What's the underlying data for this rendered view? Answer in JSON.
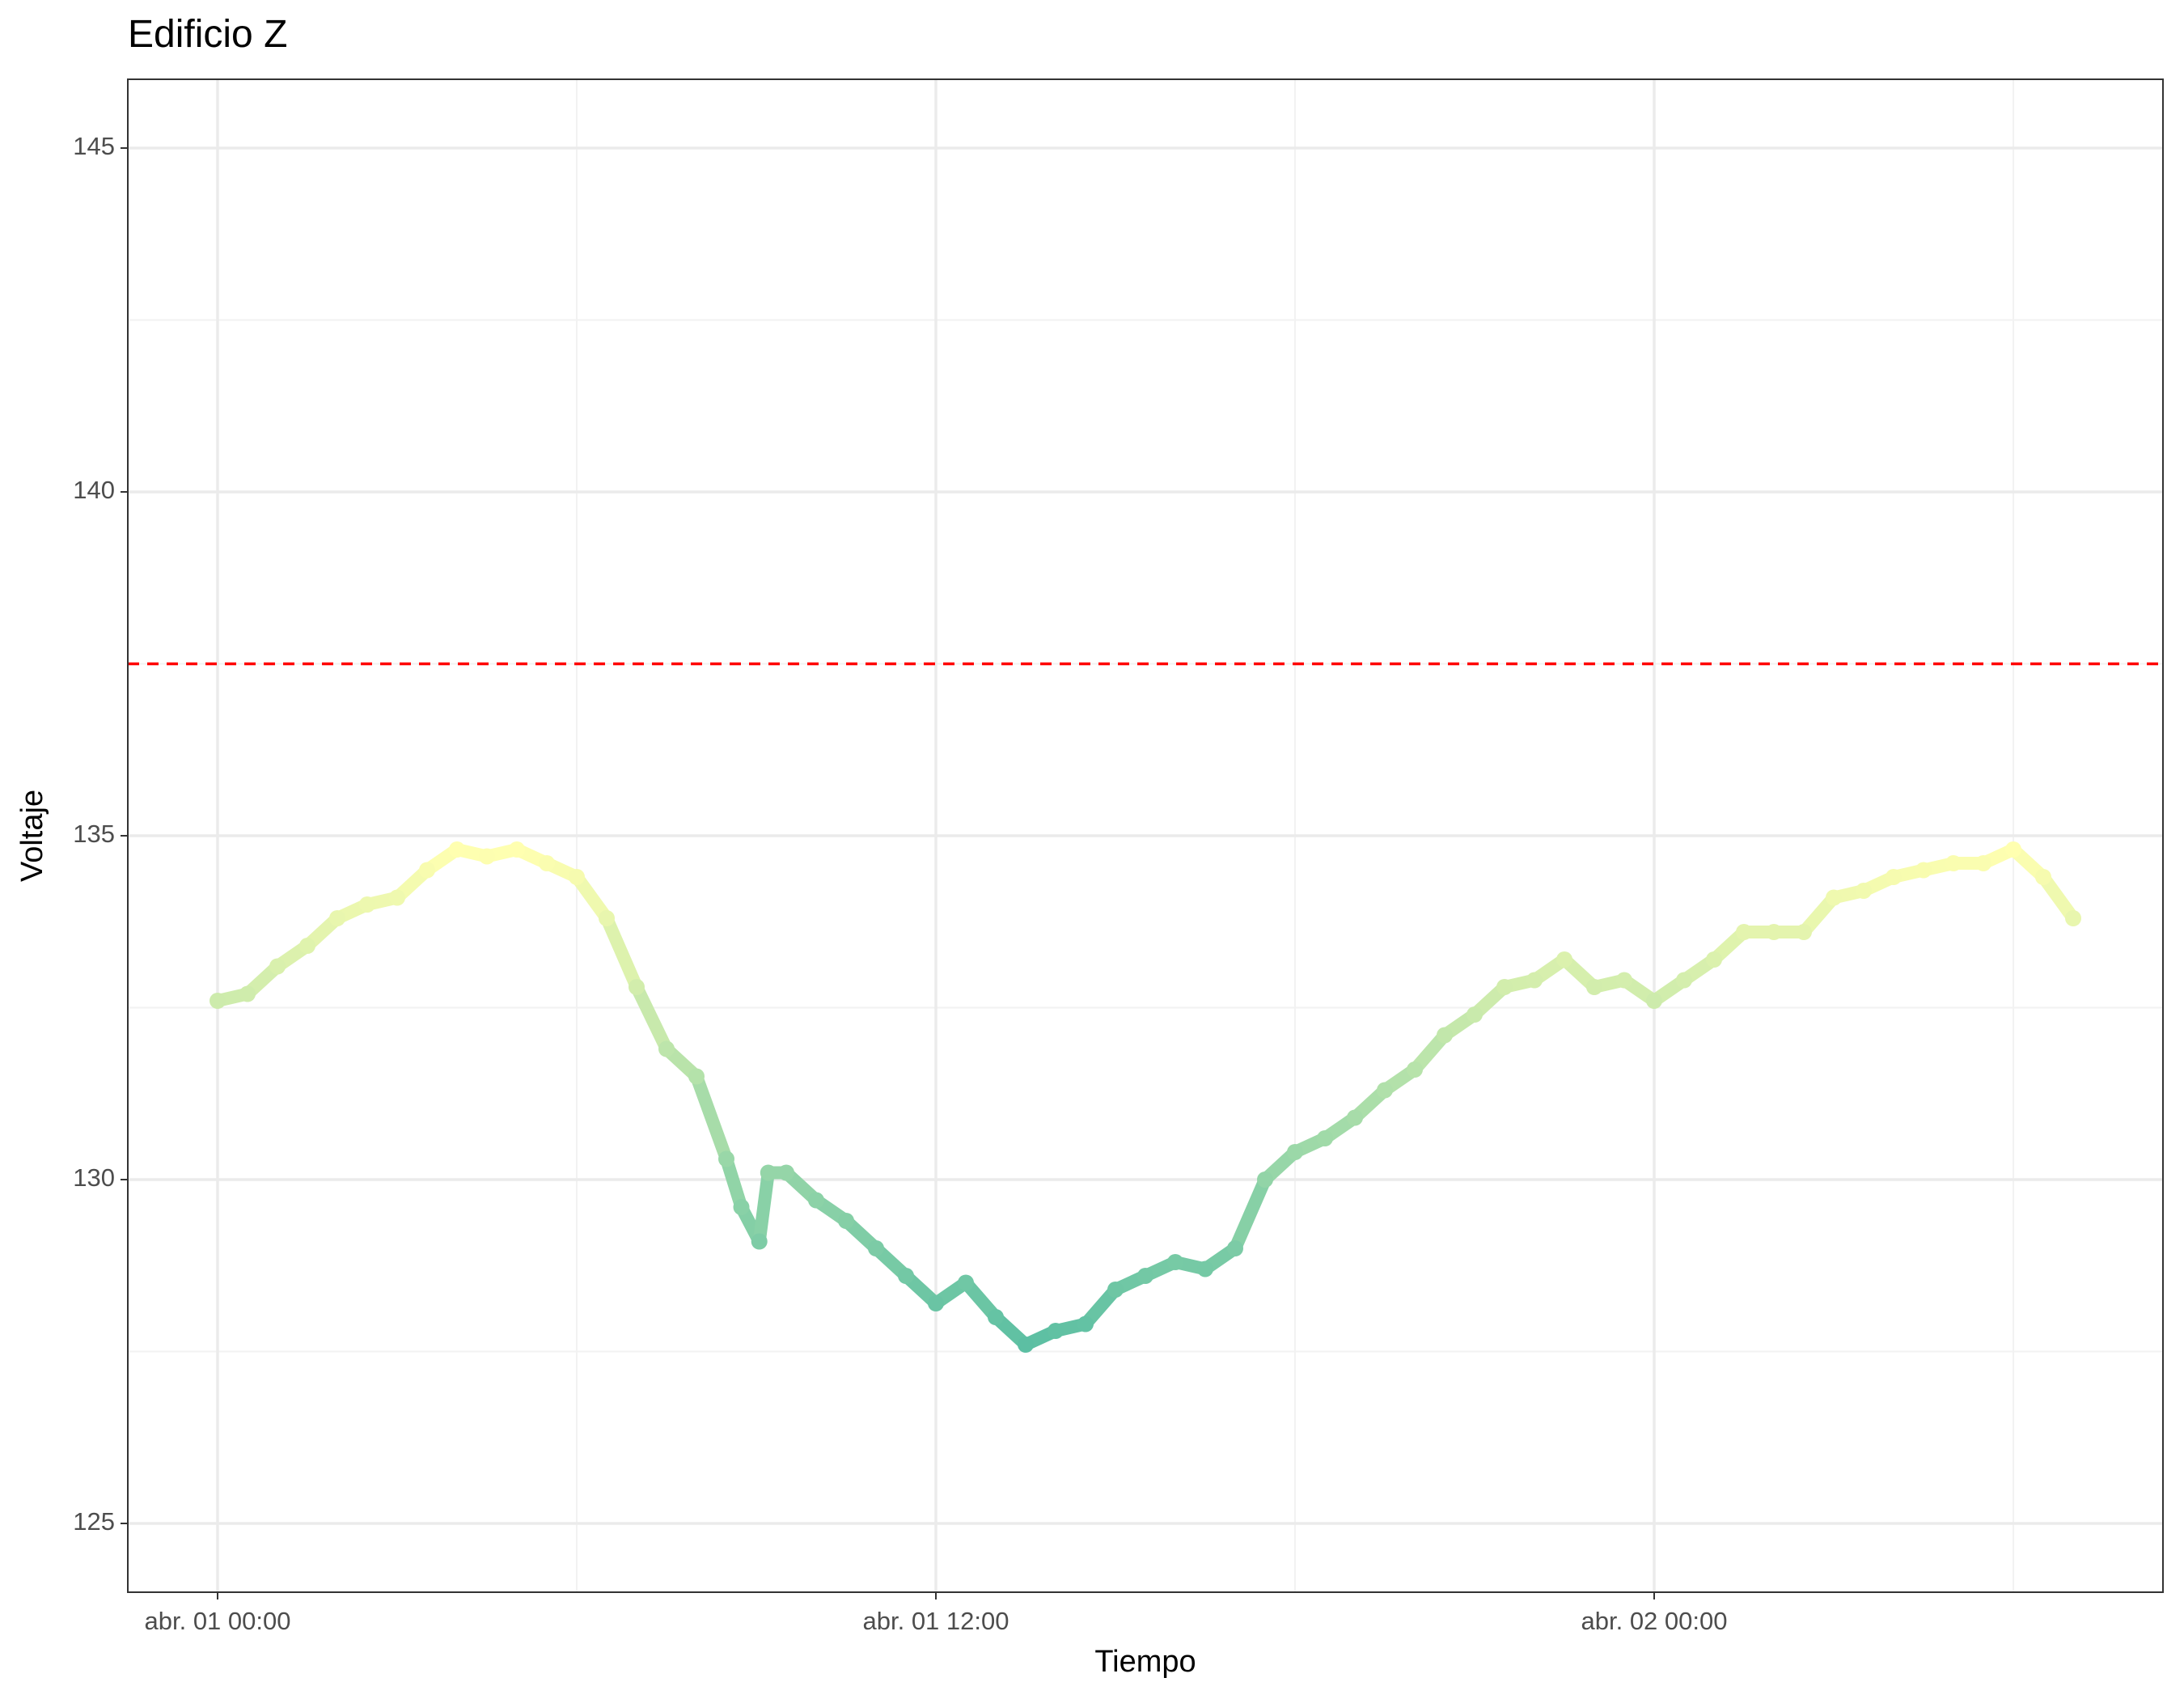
{
  "chart_data": {
    "type": "line",
    "title": "Edificio Z",
    "xlabel": "Tiempo",
    "ylabel": "Voltaje",
    "x": [
      0,
      0.5,
      1,
      1.5,
      2,
      2.5,
      3,
      3.5,
      4,
      4.5,
      5,
      5.5,
      6,
      6.5,
      7,
      7.5,
      8,
      8.5,
      8.75,
      9.05,
      9.2,
      9.5,
      10,
      10.5,
      11,
      11.5,
      12,
      12.5,
      13,
      13.5,
      14,
      14.5,
      15,
      15.5,
      16,
      16.5,
      17,
      17.5,
      18,
      18.5,
      19,
      19.5,
      20,
      20.5,
      21,
      21.5,
      22,
      22.5,
      23,
      23.5,
      24,
      24.5,
      25,
      25.5,
      26,
      26.5,
      27,
      27.5,
      28,
      28.5,
      29,
      29.5,
      30,
      30.5,
      31
    ],
    "values": [
      132.6,
      132.7,
      133.1,
      133.4,
      133.8,
      134.0,
      134.1,
      134.5,
      134.8,
      134.7,
      134.8,
      134.6,
      134.4,
      133.8,
      132.8,
      131.9,
      131.5,
      130.3,
      129.6,
      129.1,
      130.1,
      130.1,
      129.7,
      129.4,
      129.0,
      128.6,
      128.2,
      128.5,
      128.0,
      127.6,
      127.8,
      127.9,
      128.4,
      128.6,
      128.8,
      128.7,
      129.0,
      130.0,
      130.4,
      130.6,
      130.9,
      131.3,
      131.6,
      132.1,
      132.4,
      132.8,
      132.9,
      133.2,
      132.8,
      132.9,
      132.6,
      132.9,
      133.2,
      133.6,
      133.6,
      133.6,
      134.1,
      134.2,
      134.4,
      134.5,
      134.6,
      134.6,
      134.8,
      134.4,
      133.8
    ],
    "color_scale": [
      "#5cbfa3",
      "#ffffb0"
    ],
    "xlim": [
      -1.5,
      32.5
    ],
    "xticks": [
      {
        "value": 0,
        "label": "abr. 01 00:00"
      },
      {
        "value": 12,
        "label": "abr. 01 12:00"
      },
      {
        "value": 24,
        "label": "abr. 02 00:00"
      }
    ],
    "ylim": [
      124,
      146
    ],
    "yticks": [
      125,
      130,
      135,
      140,
      145
    ],
    "grid": true,
    "hline": {
      "value": 137.5,
      "color": "#ff0000",
      "dashed": true
    }
  }
}
